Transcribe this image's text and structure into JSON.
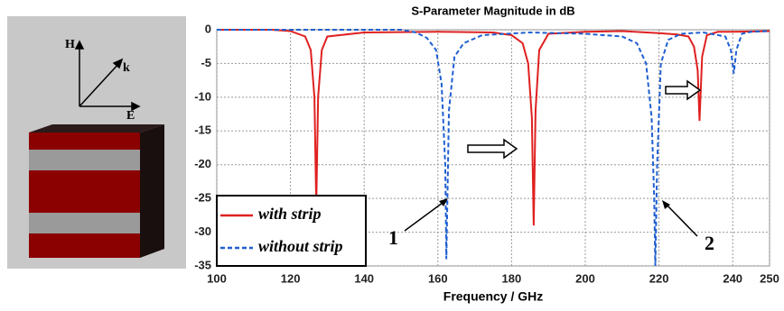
{
  "figure": {
    "labels": [
      "H",
      "k",
      "E"
    ]
  },
  "chart_data": {
    "type": "line",
    "title": "S-Parameter Magnitude in dB",
    "x_label": "Frequency / GHz",
    "xlim": [
      100,
      250
    ],
    "ylim": [
      -35,
      0
    ],
    "xticks": [
      100,
      120,
      140,
      160,
      180,
      200,
      220,
      240,
      250
    ],
    "yticks": [
      0,
      -5,
      -10,
      -15,
      -20,
      -25,
      -30,
      -35
    ],
    "grid": true,
    "legend": "lower left",
    "series": [
      {
        "name": "with strip",
        "color": "#e02020",
        "dash": false,
        "x": [
          100,
          115,
          120,
          124,
          125.5,
          126.5,
          127,
          127.5,
          128.5,
          130,
          140,
          160,
          175,
          180,
          183,
          184.5,
          185.5,
          186,
          186.5,
          187.5,
          190,
          200,
          210,
          220,
          225,
          228,
          229.5,
          230.5,
          231,
          231.7,
          233,
          236,
          240,
          250
        ],
        "values": [
          0,
          0,
          -0.2,
          -1,
          -3,
          -10,
          -26,
          -10,
          -3,
          -1,
          -0.4,
          -0.3,
          -0.4,
          -0.8,
          -2,
          -5,
          -13,
          -29,
          -12,
          -3,
          -0.6,
          -0.3,
          -0.2,
          -0.5,
          -0.7,
          -1,
          -2.5,
          -6,
          -13.5,
          -4,
          -0.8,
          -0.3,
          -0.3,
          -0.2
        ]
      },
      {
        "name": "without strip",
        "color": "#1f5fd0",
        "dash": true,
        "x": [
          100,
          150,
          154,
          157,
          159.5,
          161,
          162,
          162.3,
          163,
          164.5,
          167,
          172,
          185,
          200,
          210,
          214,
          216.5,
          218,
          218.7,
          219,
          219.5,
          220.5,
          222.5,
          226,
          232,
          238,
          239.5,
          240.3,
          241,
          242.5,
          245,
          250
        ],
        "values": [
          0,
          0,
          -0.4,
          -1.2,
          -3,
          -8,
          -20,
          -34,
          -12,
          -4,
          -2,
          -0.8,
          -0.4,
          -0.6,
          -1,
          -2,
          -5,
          -13,
          -25,
          -35,
          -20,
          -5,
          -1.5,
          -0.6,
          -0.4,
          -1,
          -3,
          -6.5,
          -3,
          -0.6,
          -0.3,
          -0.2
        ]
      }
    ],
    "annotations": [
      "1",
      "2"
    ]
  }
}
